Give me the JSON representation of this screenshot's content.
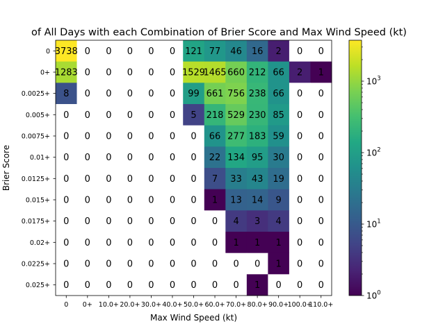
{
  "chart_data": {
    "type": "heatmap",
    "title": "of All Days with each Combination of Brier Score and Max Wind Speed (kt)",
    "xlabel": "Max Wind Speed (kt)",
    "ylabel": "Brier Score",
    "x_categories": [
      "0",
      "0+",
      "10.0+",
      "20.0+",
      "30.0+",
      "40.0+",
      "50.0+",
      "60.0+",
      "70.0+",
      "80.0+",
      "90.0+",
      "100.0+",
      "110.0+"
    ],
    "y_categories": [
      "0",
      "0+",
      "0.0025+",
      "0.005+",
      "0.0075+",
      "0.01+",
      "0.0125+",
      "0.015+",
      "0.0175+",
      "0.02+",
      "0.0225+",
      "0.025+"
    ],
    "values": [
      [
        3738,
        0,
        0,
        0,
        0,
        0,
        121,
        77,
        46,
        16,
        2,
        0,
        0
      ],
      [
        1283,
        0,
        0,
        0,
        0,
        0,
        1529,
        1465,
        660,
        212,
        66,
        2,
        1
      ],
      [
        8,
        0,
        0,
        0,
        0,
        0,
        99,
        661,
        756,
        238,
        66,
        0,
        0
      ],
      [
        0,
        0,
        0,
        0,
        0,
        0,
        5,
        218,
        529,
        230,
        85,
        0,
        0
      ],
      [
        0,
        0,
        0,
        0,
        0,
        0,
        0,
        66,
        277,
        183,
        59,
        0,
        0
      ],
      [
        0,
        0,
        0,
        0,
        0,
        0,
        0,
        22,
        134,
        95,
        30,
        0,
        0
      ],
      [
        0,
        0,
        0,
        0,
        0,
        0,
        0,
        7,
        33,
        43,
        19,
        0,
        0
      ],
      [
        0,
        0,
        0,
        0,
        0,
        0,
        0,
        1,
        13,
        14,
        9,
        0,
        0
      ],
      [
        0,
        0,
        0,
        0,
        0,
        0,
        0,
        0,
        4,
        3,
        4,
        0,
        0
      ],
      [
        0,
        0,
        0,
        0,
        0,
        0,
        0,
        0,
        1,
        1,
        1,
        0,
        0
      ],
      [
        0,
        0,
        0,
        0,
        0,
        0,
        0,
        0,
        0,
        0,
        1,
        0,
        0
      ],
      [
        0,
        0,
        0,
        0,
        0,
        0,
        0,
        0,
        0,
        1,
        0,
        0,
        0
      ]
    ],
    "color_scale": "log",
    "colormap": "viridis",
    "zero_color": "#ffffff",
    "colorbar": {
      "range": [
        1,
        3738
      ],
      "tick_labels": [
        {
          "base": "10",
          "exp": "0"
        },
        {
          "base": "10",
          "exp": "1"
        },
        {
          "base": "10",
          "exp": "2"
        },
        {
          "base": "10",
          "exp": "3"
        }
      ]
    }
  }
}
